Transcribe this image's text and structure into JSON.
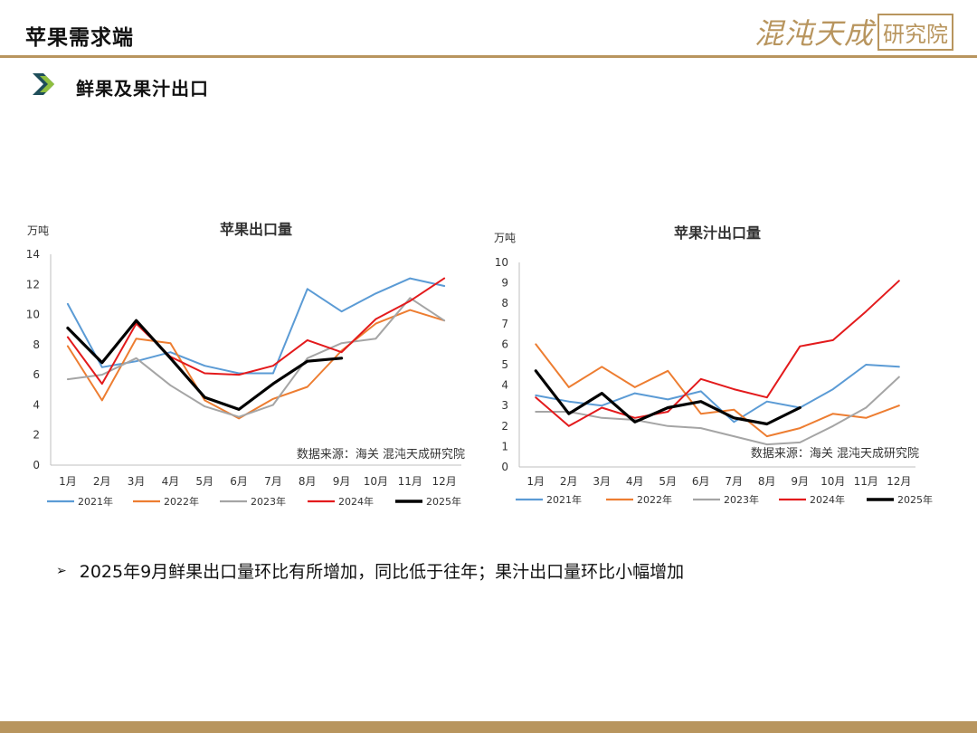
{
  "header": {
    "title": "苹果需求端",
    "logo_main": "混沌天成",
    "logo_box": "研究院"
  },
  "section": {
    "title": "鲜果及果汁出口"
  },
  "colors": {
    "2021年": "#5b9bd5",
    "2022年": "#ed7d31",
    "2023年": "#a5a5a5",
    "2024年": "#e31a1c",
    "2025年": "#000000",
    "accent": "#b8955e"
  },
  "chart_data": [
    {
      "type": "line",
      "title": "苹果出口量",
      "ylabel": "万吨",
      "ylim": [
        0,
        14
      ],
      "yticks": [
        0,
        2,
        4,
        6,
        8,
        10,
        12,
        14
      ],
      "categories": [
        "1月",
        "2月",
        "3月",
        "4月",
        "5月",
        "6月",
        "7月",
        "8月",
        "9月",
        "10月",
        "11月",
        "12月"
      ],
      "source": "数据来源：海关   混沌天成研究院",
      "series": [
        {
          "name": "2021年",
          "values": [
            10.7,
            6.5,
            6.9,
            7.5,
            6.6,
            6.1,
            6.1,
            11.7,
            10.2,
            11.4,
            12.4,
            11.9
          ]
        },
        {
          "name": "2022年",
          "values": [
            7.9,
            4.3,
            8.4,
            8.1,
            4.3,
            3.1,
            4.4,
            5.2,
            7.6,
            9.4,
            10.3,
            9.6
          ]
        },
        {
          "name": "2023年",
          "values": [
            5.7,
            6.0,
            7.1,
            5.3,
            3.9,
            3.2,
            4.0,
            7.1,
            8.1,
            8.4,
            11.1,
            9.6
          ]
        },
        {
          "name": "2024年",
          "values": [
            8.5,
            5.4,
            9.4,
            7.2,
            6.1,
            6.0,
            6.6,
            8.3,
            7.5,
            9.7,
            10.9,
            12.4
          ]
        },
        {
          "name": "2025年",
          "values": [
            9.1,
            6.8,
            9.6,
            7.1,
            4.5,
            3.7,
            5.4,
            6.9,
            7.1,
            null,
            null,
            null
          ]
        }
      ]
    },
    {
      "type": "line",
      "title": "苹果汁出口量",
      "ylabel": "万吨",
      "ylim": [
        0,
        10
      ],
      "yticks": [
        0,
        1,
        2,
        3,
        4,
        5,
        6,
        7,
        8,
        9,
        10
      ],
      "categories": [
        "1月",
        "2月",
        "3月",
        "4月",
        "5月",
        "6月",
        "7月",
        "8月",
        "9月",
        "10月",
        "11月",
        "12月"
      ],
      "source": "数据来源：海关   混沌天成研究院",
      "series": [
        {
          "name": "2021年",
          "values": [
            3.5,
            3.2,
            3.0,
            3.6,
            3.3,
            3.7,
            2.2,
            3.2,
            2.9,
            3.8,
            5.0,
            4.9
          ]
        },
        {
          "name": "2022年",
          "values": [
            6.0,
            3.9,
            4.9,
            3.9,
            4.7,
            2.6,
            2.8,
            1.5,
            1.9,
            2.6,
            2.4,
            3.0
          ]
        },
        {
          "name": "2023年",
          "values": [
            2.7,
            2.7,
            2.4,
            2.3,
            2.0,
            1.9,
            1.5,
            1.1,
            1.2,
            2.0,
            2.9,
            4.4
          ]
        },
        {
          "name": "2024年",
          "values": [
            3.4,
            2.0,
            2.9,
            2.4,
            2.7,
            4.3,
            3.8,
            3.4,
            5.9,
            6.2,
            7.6,
            9.1
          ]
        },
        {
          "name": "2025年",
          "values": [
            4.7,
            2.6,
            3.6,
            2.2,
            2.9,
            3.2,
            2.4,
            2.1,
            2.9,
            null,
            null,
            null
          ]
        }
      ]
    }
  ],
  "bullet": {
    "mark": "➢",
    "text": "2025年9月鲜果出口量环比有所增加，同比低于往年；果汁出口量环比小幅增加"
  }
}
